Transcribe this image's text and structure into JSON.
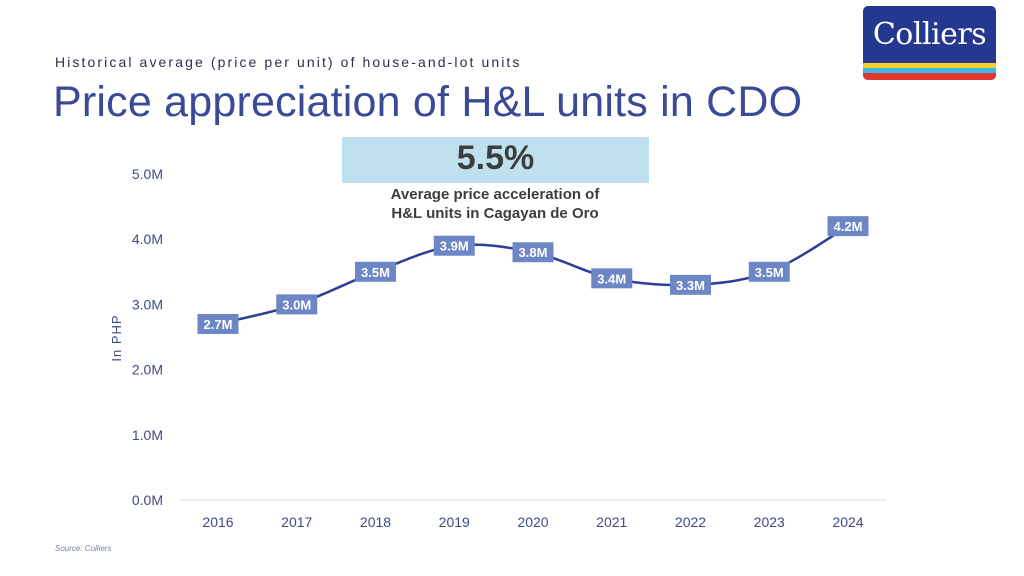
{
  "header": {
    "subtitle": "Historical average (price per unit) of house-and-lot units",
    "title": "Price appreciation of H&L units in CDO"
  },
  "logo": {
    "text": "Colliers",
    "colors": {
      "background": "#25388f",
      "stripes": [
        "#f2d12b",
        "#3fb7e2",
        "#e03a30"
      ]
    }
  },
  "callout": {
    "value": "5.5%",
    "description_line1": "Average price acceleration of",
    "description_line2": "H&L units in Cagayan de Oro"
  },
  "footer": {
    "source": "Source: Colliers"
  },
  "colors": {
    "line": "#2e3e95",
    "label_bg": "#6d86c5",
    "axis_text": "#3f4a82",
    "baseline": "#e3e5ec"
  },
  "chart_data": {
    "type": "line",
    "title": "Price appreciation of H&L units in CDO",
    "xlabel": "",
    "ylabel": "In PHP",
    "categories": [
      "2016",
      "2017",
      "2018",
      "2019",
      "2020",
      "2021",
      "2022",
      "2023",
      "2024"
    ],
    "values": [
      2.7,
      3.0,
      3.5,
      3.9,
      3.8,
      3.4,
      3.3,
      3.5,
      4.2
    ],
    "data_labels": [
      "2.7M",
      "3.0M",
      "3.5M",
      "3.9M",
      "3.8M",
      "3.4M",
      "3.3M",
      "3.5M",
      "4.2M"
    ],
    "units": "M PHP",
    "ylim": [
      0,
      5
    ],
    "yticks": [
      0,
      1,
      2,
      3,
      4,
      5
    ],
    "ytick_labels": [
      "0.0M",
      "1.0M",
      "2.0M",
      "3.0M",
      "4.0M",
      "5.0M"
    ],
    "grid": false,
    "legend": "none",
    "smooth": true
  }
}
